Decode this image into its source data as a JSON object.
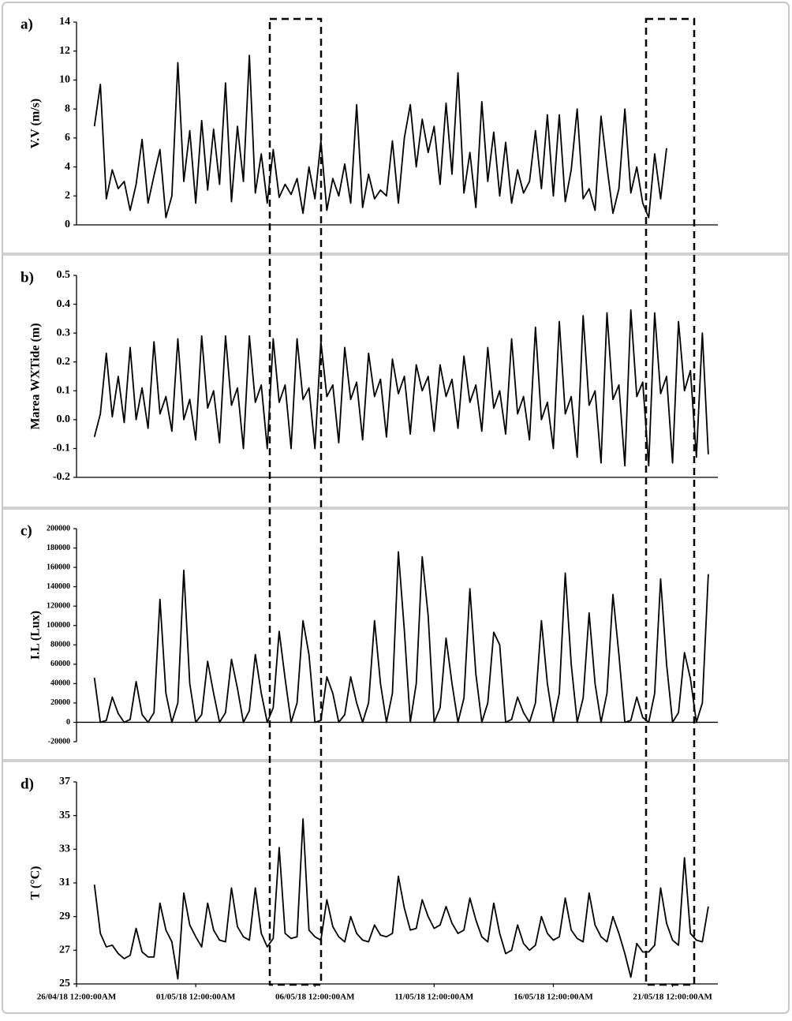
{
  "chart_data": [
    {
      "type": "line",
      "label": "a)",
      "ylabel": "V.V (m/s)",
      "color": "#000000",
      "xlim": [
        0,
        26.9
      ],
      "ylim": [
        0,
        14
      ],
      "yticks": [
        0,
        2,
        4,
        6,
        8,
        10,
        12,
        14
      ],
      "x": [
        0.75,
        1,
        1.25,
        1.5,
        1.75,
        2,
        2.25,
        2.5,
        2.75,
        3,
        3.25,
        3.5,
        3.75,
        4,
        4.25,
        4.5,
        4.75,
        5,
        5.25,
        5.5,
        5.75,
        6,
        6.25,
        6.5,
        6.75,
        7,
        7.25,
        7.5,
        7.75,
        8,
        8.25,
        8.5,
        8.75,
        9,
        9.25,
        9.5,
        9.75,
        10,
        10.25,
        10.5,
        10.75,
        11,
        11.25,
        11.5,
        11.75,
        12,
        12.25,
        12.5,
        12.75,
        13,
        13.25,
        13.5,
        13.75,
        14,
        14.25,
        14.5,
        14.75,
        15,
        15.25,
        15.5,
        15.75,
        16,
        16.25,
        16.5,
        16.75,
        17,
        17.25,
        17.5,
        17.75,
        18,
        18.25,
        18.5,
        18.75,
        19,
        19.25,
        19.5,
        19.75,
        20,
        20.25,
        20.5,
        20.75,
        21,
        21.25,
        21.5,
        21.75,
        22,
        22.25,
        22.5,
        22.75,
        23,
        23.25,
        23.5,
        23.75,
        24,
        24.25,
        24.5,
        24.75
      ],
      "values": [
        6.8,
        9.7,
        1.8,
        3.8,
        2.5,
        3.0,
        1.0,
        2.8,
        5.9,
        1.5,
        3.4,
        5.2,
        0.5,
        2.0,
        11.2,
        3.0,
        6.5,
        1.5,
        7.2,
        2.4,
        6.6,
        2.8,
        9.8,
        1.6,
        6.8,
        3.0,
        11.7,
        2.2,
        4.9,
        1.5,
        5.2,
        1.9,
        2.8,
        2.1,
        3.2,
        0.8,
        4.0,
        1.8,
        5.8,
        1.0,
        3.2,
        2.0,
        4.2,
        1.5,
        8.3,
        1.2,
        3.5,
        1.8,
        2.4,
        2.0,
        5.8,
        1.5,
        6.0,
        8.3,
        4.0,
        7.3,
        5.0,
        6.8,
        2.8,
        8.4,
        3.5,
        10.5,
        2.2,
        5.0,
        1.2,
        8.5,
        3.0,
        6.4,
        2.0,
        5.7,
        1.5,
        3.8,
        2.2,
        3.0,
        6.5,
        2.5,
        7.6,
        2.0,
        7.6,
        1.6,
        3.8,
        8.0,
        1.8,
        2.5,
        1.0,
        7.5,
        4.0,
        0.8,
        2.5,
        8.0,
        2.2,
        4.0,
        1.5,
        0.5,
        4.9,
        1.8,
        5.3
      ]
    },
    {
      "type": "line",
      "label": "b)",
      "ylabel": "Marea WXTide (m)",
      "color": "#000000",
      "xlim": [
        0,
        26.9
      ],
      "ylim": [
        -0.2,
        0.5
      ],
      "yticks": [
        -0.2,
        -0.1,
        {
          "value": 0,
          "label": "0.0"
        },
        0.1,
        0.2,
        0.3,
        0.4,
        0.5
      ],
      "x": [
        0.75,
        1,
        1.25,
        1.5,
        1.75,
        2,
        2.25,
        2.5,
        2.75,
        3,
        3.25,
        3.5,
        3.75,
        4,
        4.25,
        4.5,
        4.75,
        5,
        5.25,
        5.5,
        5.75,
        6,
        6.25,
        6.5,
        6.75,
        7,
        7.25,
        7.5,
        7.75,
        8,
        8.25,
        8.5,
        8.75,
        9,
        9.25,
        9.5,
        9.75,
        10,
        10.25,
        10.5,
        10.75,
        11,
        11.25,
        11.5,
        11.75,
        12,
        12.25,
        12.5,
        12.75,
        13,
        13.25,
        13.5,
        13.75,
        14,
        14.25,
        14.5,
        14.75,
        15,
        15.25,
        15.5,
        15.75,
        16,
        16.25,
        16.5,
        16.75,
        17,
        17.25,
        17.5,
        17.75,
        18,
        18.25,
        18.5,
        18.75,
        19,
        19.25,
        19.5,
        19.75,
        20,
        20.25,
        20.5,
        20.75,
        21,
        21.25,
        21.5,
        21.75,
        22,
        22.25,
        22.5,
        22.75,
        23,
        23.25,
        23.5,
        23.75,
        24,
        24.25,
        24.5,
        24.75,
        25,
        25.25,
        25.5,
        25.75,
        26,
        26.25,
        26.5
      ],
      "values": [
        -0.06,
        0.02,
        0.23,
        0.01,
        0.15,
        -0.01,
        0.25,
        0.0,
        0.11,
        -0.03,
        0.27,
        0.02,
        0.08,
        -0.04,
        0.28,
        0.0,
        0.07,
        -0.07,
        0.29,
        0.04,
        0.1,
        -0.08,
        0.29,
        0.05,
        0.11,
        -0.1,
        0.29,
        0.06,
        0.12,
        -0.1,
        0.28,
        0.06,
        0.12,
        -0.1,
        0.28,
        0.07,
        0.11,
        -0.1,
        0.27,
        0.08,
        0.12,
        -0.08,
        0.25,
        0.07,
        0.13,
        -0.07,
        0.23,
        0.08,
        0.14,
        -0.06,
        0.21,
        0.09,
        0.15,
        -0.05,
        0.19,
        0.1,
        0.15,
        -0.04,
        0.19,
        0.08,
        0.14,
        -0.03,
        0.22,
        0.06,
        0.12,
        -0.04,
        0.25,
        0.04,
        0.1,
        -0.05,
        0.28,
        0.02,
        0.08,
        -0.07,
        0.32,
        0.0,
        0.06,
        -0.1,
        0.34,
        0.02,
        0.08,
        -0.13,
        0.36,
        0.05,
        0.1,
        -0.15,
        0.37,
        0.07,
        0.12,
        -0.16,
        0.38,
        0.08,
        0.13,
        -0.16,
        0.37,
        0.09,
        0.15,
        -0.15,
        0.34,
        0.1,
        0.17,
        -0.13,
        0.3,
        -0.12
      ]
    },
    {
      "type": "line",
      "label": "c)",
      "ylabel": "I.L (Lux)",
      "color": "#000000",
      "xaxis_crosses": 0,
      "xlim": [
        0,
        26.9
      ],
      "ylim": [
        -20000,
        200000
      ],
      "yticks": [
        -20000,
        0,
        20000,
        40000,
        60000,
        80000,
        100000,
        120000,
        140000,
        160000,
        180000,
        200000
      ],
      "x": [
        0.75,
        1,
        1.25,
        1.5,
        1.75,
        2,
        2.25,
        2.5,
        2.75,
        3,
        3.25,
        3.5,
        3.75,
        4,
        4.25,
        4.5,
        4.75,
        5,
        5.25,
        5.5,
        5.75,
        6,
        6.25,
        6.5,
        6.75,
        7,
        7.25,
        7.5,
        7.75,
        8,
        8.25,
        8.5,
        8.75,
        9,
        9.25,
        9.5,
        9.75,
        10,
        10.25,
        10.5,
        10.75,
        11,
        11.25,
        11.5,
        11.75,
        12,
        12.25,
        12.5,
        12.75,
        13,
        13.25,
        13.5,
        13.75,
        14,
        14.25,
        14.5,
        14.75,
        15,
        15.25,
        15.5,
        15.75,
        16,
        16.25,
        16.5,
        16.75,
        17,
        17.25,
        17.5,
        17.75,
        18,
        18.25,
        18.5,
        18.75,
        19,
        19.25,
        19.5,
        19.75,
        20,
        20.25,
        20.5,
        20.75,
        21,
        21.25,
        21.5,
        21.75,
        22,
        22.25,
        22.5,
        22.75,
        23,
        23.25,
        23.5,
        23.75,
        24,
        24.25,
        24.5,
        24.75,
        25,
        25.25,
        25.5,
        25.75,
        26,
        26.25,
        26.5
      ],
      "values": [
        46000,
        0,
        2000,
        26000,
        9000,
        0,
        3000,
        42000,
        8000,
        0,
        10000,
        127000,
        30000,
        0,
        20000,
        157000,
        40000,
        0,
        8000,
        63000,
        30000,
        0,
        10000,
        65000,
        35000,
        0,
        12000,
        70000,
        30000,
        0,
        15000,
        94000,
        45000,
        0,
        20000,
        105000,
        70000,
        0,
        2000,
        47000,
        30000,
        0,
        8000,
        47000,
        20000,
        0,
        20000,
        105000,
        40000,
        0,
        30000,
        176000,
        95000,
        0,
        40000,
        171000,
        110000,
        0,
        15000,
        87000,
        40000,
        0,
        25000,
        138000,
        50000,
        0,
        20000,
        93000,
        80000,
        0,
        3000,
        26000,
        10000,
        0,
        20000,
        105000,
        40000,
        0,
        30000,
        154000,
        60000,
        0,
        25000,
        113000,
        40000,
        0,
        30000,
        132000,
        70000,
        0,
        2000,
        26000,
        5000,
        0,
        30000,
        148000,
        60000,
        0,
        10000,
        72000,
        45000,
        0,
        20000,
        153000
      ]
    },
    {
      "type": "line",
      "label": "d)",
      "ylabel": "T (°C)",
      "color": "#000000",
      "xlim": [
        0,
        26.9
      ],
      "ylim": [
        25,
        37
      ],
      "yticks": [
        25,
        27,
        29,
        31,
        33,
        35,
        37
      ],
      "xticks": [
        {
          "value": 0,
          "label": "26/04/18 12:00:00AM"
        },
        {
          "value": 5,
          "label": "01/05/18 12:00:00AM"
        },
        {
          "value": 10,
          "label": "06/05/18 12:00:00AM"
        },
        {
          "value": 15,
          "label": "11/05/18 12:00:00AM"
        },
        {
          "value": 20,
          "label": "16/05/18 12:00:00AM"
        },
        {
          "value": 25,
          "label": "21/05/18 12:00:00AM"
        }
      ],
      "x": [
        0.75,
        1,
        1.25,
        1.5,
        1.75,
        2,
        2.25,
        2.5,
        2.75,
        3,
        3.25,
        3.5,
        3.75,
        4,
        4.25,
        4.5,
        4.75,
        5,
        5.25,
        5.5,
        5.75,
        6,
        6.25,
        6.5,
        6.75,
        7,
        7.25,
        7.5,
        7.75,
        8,
        8.25,
        8.5,
        8.75,
        9,
        9.25,
        9.5,
        9.75,
        10,
        10.25,
        10.5,
        10.75,
        11,
        11.25,
        11.5,
        11.75,
        12,
        12.25,
        12.5,
        12.75,
        13,
        13.25,
        13.5,
        13.75,
        14,
        14.25,
        14.5,
        14.75,
        15,
        15.25,
        15.5,
        15.75,
        16,
        16.25,
        16.5,
        16.75,
        17,
        17.25,
        17.5,
        17.75,
        18,
        18.25,
        18.5,
        18.75,
        19,
        19.25,
        19.5,
        19.75,
        20,
        20.25,
        20.5,
        20.75,
        21,
        21.25,
        21.5,
        21.75,
        22,
        22.25,
        22.5,
        22.75,
        23,
        23.25,
        23.5,
        23.75,
        24,
        24.25,
        24.5,
        24.75,
        25,
        25.25,
        25.5,
        25.75,
        26,
        26.25,
        26.5
      ],
      "values": [
        30.9,
        28.0,
        27.2,
        27.3,
        26.8,
        26.5,
        26.7,
        28.3,
        26.9,
        26.6,
        26.6,
        29.8,
        28.2,
        27.5,
        25.3,
        30.4,
        28.5,
        27.8,
        27.2,
        29.8,
        28.2,
        27.6,
        27.5,
        30.7,
        28.4,
        27.8,
        27.6,
        30.7,
        28.0,
        27.2,
        27.7,
        33.1,
        28.0,
        27.7,
        27.8,
        34.8,
        28.2,
        27.8,
        27.6,
        30.0,
        28.4,
        27.8,
        27.5,
        29.0,
        28.0,
        27.6,
        27.5,
        28.5,
        27.9,
        27.8,
        28.0,
        31.4,
        29.5,
        28.2,
        28.3,
        30.0,
        29.0,
        28.3,
        28.5,
        29.6,
        28.6,
        28.0,
        28.2,
        30.1,
        28.8,
        27.8,
        27.5,
        29.8,
        28.0,
        26.8,
        27.0,
        28.5,
        27.4,
        27.0,
        27.3,
        29.0,
        28.0,
        27.6,
        27.8,
        30.1,
        28.2,
        27.7,
        27.5,
        30.4,
        28.5,
        27.8,
        27.5,
        29.0,
        28.0,
        26.8,
        25.4,
        27.4,
        26.9,
        26.9,
        27.3,
        30.7,
        28.6,
        27.6,
        27.3,
        32.5,
        28.0,
        27.6,
        27.5,
        29.6
      ]
    }
  ]
}
